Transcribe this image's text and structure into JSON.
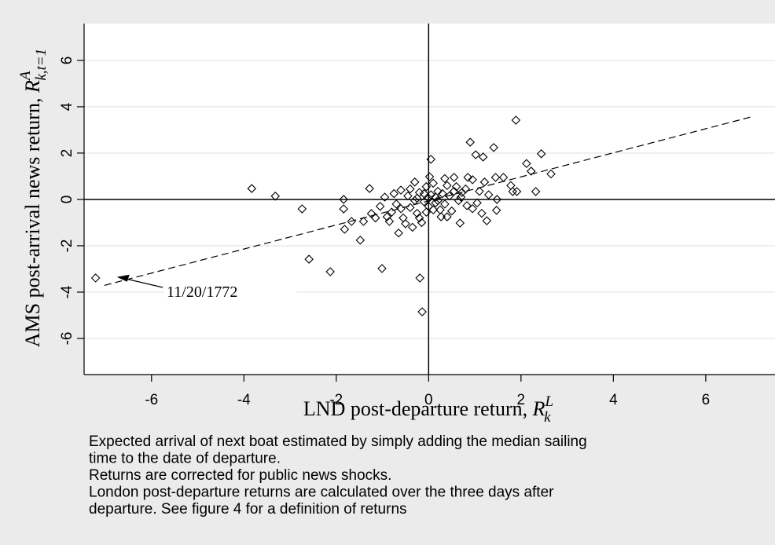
{
  "chart_data": {
    "type": "scatter",
    "xlabel": {
      "text": "LND post-departure return, ",
      "symbol": "R",
      "sup": "L",
      "sub": "k"
    },
    "ylabel": {
      "text": "AMS post-arrival news return, ",
      "symbol": "R",
      "sup": "A",
      "sub": "k,t=1"
    },
    "xlim": [
      -7.46,
      7.5
    ],
    "ylim": [
      -7.56,
      7.59
    ],
    "xticks": [
      -6,
      -4,
      -2,
      0,
      2,
      4,
      6
    ],
    "yticks": [
      -6,
      -4,
      -2,
      0,
      2,
      4,
      6
    ],
    "grid": true,
    "series": [
      {
        "color": "#000000",
        "x": [
          -7.21,
          -3.83,
          -3.32,
          -2.74,
          -2.59,
          -2.13,
          -1.84,
          -1.84,
          -1.82,
          -1.67,
          -1.48,
          -1.41,
          -1.28,
          -1.24,
          -1.01,
          -0.19,
          -0.14,
          0.05,
          0.02,
          1.89,
          2.44,
          2.12,
          2.22,
          2.65,
          2.32,
          1.41,
          0.9,
          1.02,
          1.18,
          1.48,
          1.82,
          1.91,
          1.45,
          1.62,
          1.26,
          1.47,
          0.68,
          0.27,
          0.95,
          1.21,
          0.83,
          1.78,
          1.05,
          0.72,
          0.55,
          0.4,
          0.35,
          0.2,
          0.1,
          -0.05,
          -0.1,
          -0.2,
          -0.25,
          -0.3,
          -0.4,
          -0.45,
          -0.55,
          -0.6,
          -0.65,
          -0.7,
          -0.8,
          -0.9,
          -0.95,
          -1.05,
          -0.85,
          -0.5,
          -0.35,
          -0.15,
          0.0,
          0.15,
          0.25,
          0.3,
          0.45,
          0.5,
          0.6,
          0.65,
          0.8,
          0.85,
          0.95,
          1.1,
          1.15,
          1.3,
          0.05,
          -0.05,
          0.1,
          -0.3,
          -0.6,
          -0.75,
          0.4,
          0.55,
          -0.2,
          -0.4,
          0.15,
          -0.1,
          0.35,
          0.7,
          -1.15,
          -0.25,
          0.0,
          0.2
        ],
        "values": [
          -3.39,
          0.47,
          0.14,
          -0.41,
          -2.58,
          -3.12,
          0.0,
          -0.41,
          -1.29,
          -0.95,
          -1.76,
          -0.95,
          0.47,
          -0.61,
          -2.98,
          -3.39,
          -4.85,
          1.73,
          0.98,
          3.42,
          1.97,
          1.55,
          1.22,
          1.1,
          0.34,
          2.24,
          2.47,
          1.93,
          1.83,
          0.0,
          0.34,
          0.34,
          0.95,
          0.95,
          -0.92,
          -0.47,
          -1.02,
          -0.75,
          0.85,
          0.75,
          -0.27,
          0.6,
          -0.15,
          0.3,
          0.95,
          0.6,
          -0.2,
          0.35,
          -0.45,
          0.55,
          -0.1,
          0.3,
          -0.6,
          0.75,
          -0.35,
          0.15,
          -0.8,
          0.4,
          -1.45,
          -0.2,
          -0.55,
          -0.75,
          0.1,
          -0.3,
          -0.95,
          -1.05,
          -1.2,
          -1.0,
          -0.3,
          0.1,
          -0.45,
          0.25,
          0.15,
          -0.5,
          0.55,
          -0.05,
          0.45,
          0.95,
          -0.4,
          0.35,
          -0.6,
          0.2,
          0.2,
          -0.55,
          0.7,
          -0.05,
          -0.4,
          0.25,
          -0.75,
          0.35,
          -0.8,
          0.45,
          -0.15,
          0.25,
          0.9,
          0.1,
          -0.8,
          0.05,
          0.05,
          -0.05
        ]
      }
    ],
    "fit": {
      "x": [
        -7.02,
        7.04
      ],
      "y": [
        -3.71,
        3.59
      ]
    },
    "annotation": {
      "text": "11/20/1772",
      "x": -6.75,
      "y": -3.35
    },
    "caption": [
      "Expected arrival of next boat estimated by simply adding the median sailing",
      "time to the date of departure.",
      "Returns are corrected for public news shocks.",
      "London post-departure returns are calculated over the three days after",
      "departure. See figure 4 for a definition of returns"
    ]
  }
}
